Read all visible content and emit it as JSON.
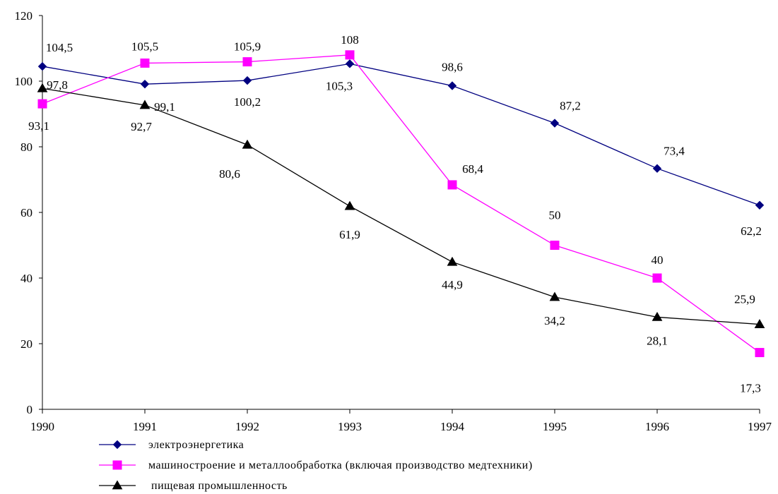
{
  "chart_data": {
    "type": "line",
    "x": [
      "1990",
      "1991",
      "1992",
      "1993",
      "1994",
      "1995",
      "1996",
      "1997"
    ],
    "ylim": [
      0,
      120
    ],
    "yticks": [
      "0",
      "20",
      "40",
      "60",
      "80",
      "100",
      "120"
    ],
    "grid": false,
    "legend_position": "bottom-left",
    "series": [
      {
        "name": "электроэнергетика",
        "color": "#000080",
        "marker": "diamond",
        "values": [
          104.5,
          99.1,
          100.2,
          105.3,
          98.6,
          87.2,
          73.4,
          62.2
        ],
        "labels": [
          "104,5",
          "99,1",
          "100,2",
          "105,3",
          "98,6",
          "87,2",
          "73,4",
          "62,2"
        ]
      },
      {
        "name": "машиностроение и металлообработка (включая производство медтехники)",
        "color": "#ff00ff",
        "marker": "square",
        "values": [
          93.1,
          105.5,
          105.9,
          108,
          68.4,
          50,
          40,
          17.3
        ],
        "labels": [
          "93,1",
          "105,5",
          "105,9",
          "108",
          "68,4",
          "50",
          "40",
          "17,3"
        ]
      },
      {
        "name": "пищевая промышленность",
        "color": "#000000",
        "marker": "triangle",
        "values": [
          97.8,
          92.7,
          80.6,
          61.9,
          44.9,
          34.2,
          28.1,
          25.9
        ],
        "labels": [
          "97,8",
          "92,7",
          "80,6",
          "61,9",
          "44,9",
          "34,2",
          "28,1",
          "25,9"
        ]
      }
    ]
  }
}
